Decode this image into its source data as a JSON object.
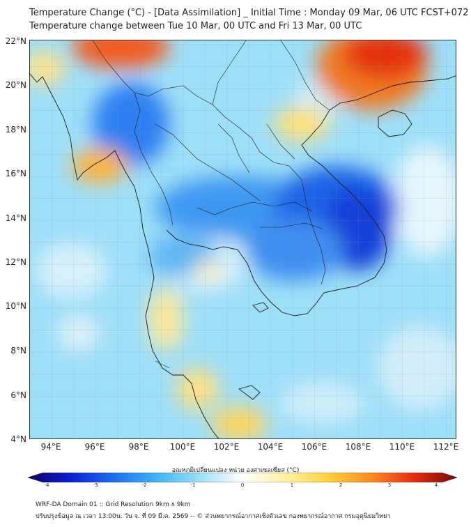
{
  "title": {
    "line1": "Temperature Change (°C) - [Data Assimilation] _ Initial Time : Monday 09 Mar, 06 UTC FCST+072",
    "line2": "Temperature change between Tue 10 Mar, 00 UTC and Fri 13 Mar, 00 UTC"
  },
  "axes": {
    "lat_labels": [
      "22°N",
      "20°N",
      "18°N",
      "16°N",
      "14°N",
      "12°N",
      "10°N",
      "8°N",
      "6°N",
      "4°N"
    ],
    "lon_labels": [
      "94°E",
      "96°E",
      "98°E",
      "100°E",
      "102°E",
      "104°E",
      "106°E",
      "108°E",
      "110°E",
      "112°E"
    ],
    "lat_range": [
      4,
      22.2
    ],
    "lon_range": [
      93,
      112.5
    ]
  },
  "colorbar": {
    "title": "อุณหภูมิเปลี่ยนแปลง หน่วย องศาเซลเซียส (°C)",
    "ticks": [
      "-4",
      "-3",
      "-2",
      "-1",
      "0",
      "1",
      "2",
      "3",
      "4"
    ],
    "range": [
      -4,
      4
    ],
    "colors": [
      "#08006b",
      "#0a1fd6",
      "#1e6ef0",
      "#3fb4f5",
      "#9bdff8",
      "#ffffff",
      "#fff3a0",
      "#ffd23c",
      "#ff8a1e",
      "#e62a12",
      "#7a0a0a"
    ]
  },
  "footer": {
    "line1": "WRF-DA Domain 01 :: Grid Resolution 9km x 9km",
    "line2": "ปรับปรุงข้อมูล ณ เวลา 13:00น. วัน จ. ที่ 09 มี.ค. 2569 -- © ส่วนพยากรณ์อากาศเชิงตัวเลข กองพยากรณ์อากาศ กรมอุตุนิยมวิทยา"
  }
}
